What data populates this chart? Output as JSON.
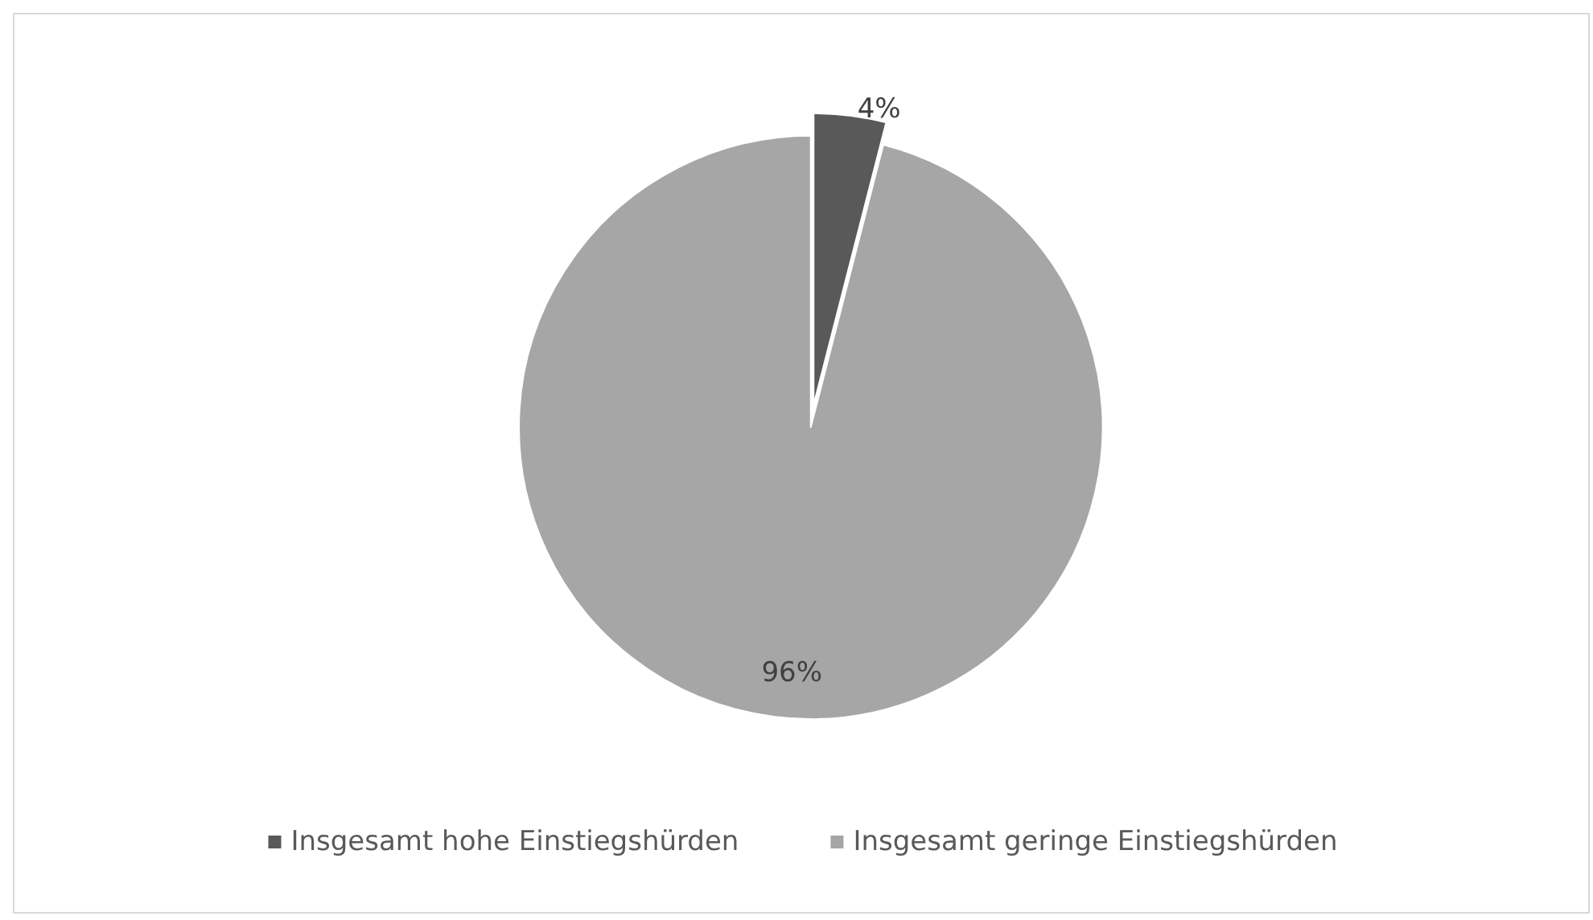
{
  "chart_data": {
    "type": "pie",
    "categories": [
      "Insgesamt hohe Einstiegshürden",
      "Insgesamt geringe Einstiegshürden"
    ],
    "values": [
      4,
      96
    ],
    "colors": [
      "#595959",
      "#a6a6a6"
    ],
    "value_labels": [
      "4%",
      "96%"
    ],
    "legend": "bottom"
  }
}
